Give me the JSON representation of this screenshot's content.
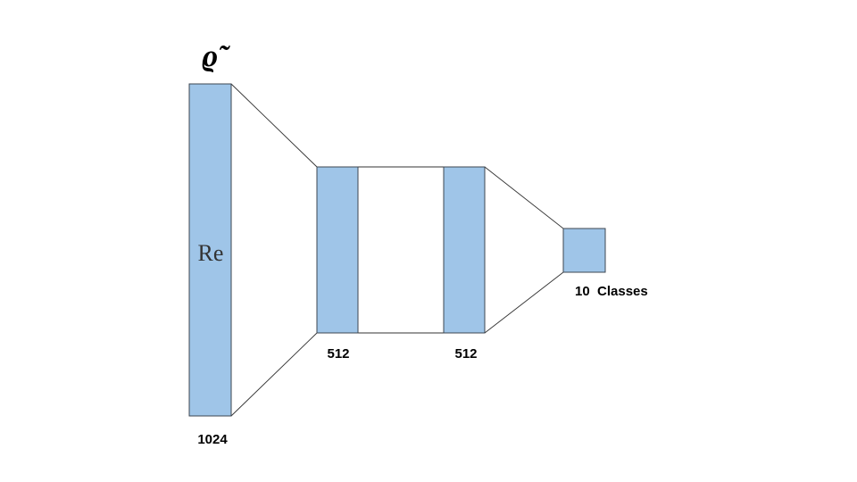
{
  "diagram": {
    "input_symbol": "ϱ̃",
    "input_inner_label": "Re",
    "layers": [
      {
        "id": "input",
        "size_label": "1024"
      },
      {
        "id": "hidden1",
        "size_label": "512"
      },
      {
        "id": "hidden2",
        "size_label": "512"
      },
      {
        "id": "output",
        "size_label": "10  Classes"
      }
    ]
  },
  "colors": {
    "layer_fill": "#9fc5e8",
    "layer_stroke": "#3c4650",
    "line": "#333333",
    "text": "#000000"
  }
}
